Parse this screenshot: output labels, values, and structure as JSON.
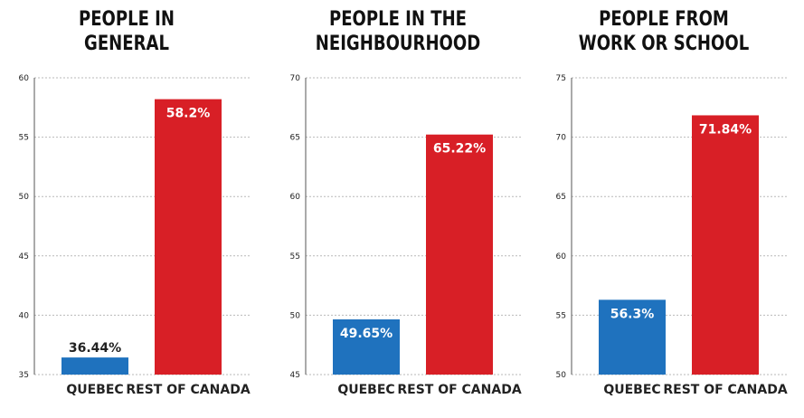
{
  "colors": {
    "quebec": "#1f72be",
    "rest_of_canada": "#d81f26",
    "grid": "#b9b9b9",
    "axis": "#555555"
  },
  "chart_data": [
    {
      "type": "bar",
      "title": "PEOPLE IN\nGENERAL",
      "categories": [
        "QUEBEC",
        "REST OF CANADA"
      ],
      "values": [
        36.44,
        58.2
      ],
      "value_labels": [
        "36.44%",
        "58.2%"
      ],
      "ylim": [
        35,
        60
      ],
      "yticks": [
        35,
        40,
        45,
        50,
        55,
        60
      ],
      "grid": true,
      "xlabel": "",
      "ylabel": ""
    },
    {
      "type": "bar",
      "title": "PEOPLE IN THE\nNEIGHBOURHOOD",
      "categories": [
        "QUEBEC",
        "REST OF CANADA"
      ],
      "values": [
        49.65,
        65.22
      ],
      "value_labels": [
        "49.65%",
        "65.22%"
      ],
      "ylim": [
        45,
        70
      ],
      "yticks": [
        45,
        50,
        55,
        60,
        65,
        70
      ],
      "grid": true,
      "xlabel": "",
      "ylabel": ""
    },
    {
      "type": "bar",
      "title": "PEOPLE FROM\nWORK OR SCHOOL",
      "categories": [
        "QUEBEC",
        "REST OF CANADA"
      ],
      "values": [
        56.3,
        71.84
      ],
      "value_labels": [
        "56.3%",
        "71.84%"
      ],
      "ylim": [
        50,
        75
      ],
      "yticks": [
        50,
        55,
        60,
        65,
        70,
        75
      ],
      "grid": true,
      "xlabel": "",
      "ylabel": ""
    }
  ]
}
